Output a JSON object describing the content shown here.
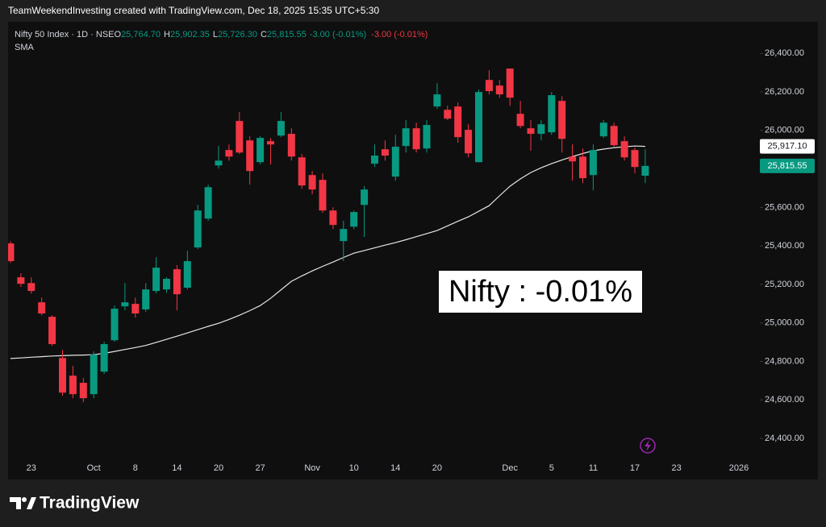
{
  "chart_data": {
    "type": "candlestick",
    "source": "TeamWeekendInvesting created with TradingView.com, Dec 18, 2025 15:35 UTC+5:30",
    "title": "Nifty 50 Index · 1D · NSE",
    "legend": [
      {
        "label": "O",
        "value": "25,764.70"
      },
      {
        "label": "H",
        "value": "25,902.35"
      },
      {
        "label": "L",
        "value": "25,726.30"
      },
      {
        "label": "C",
        "value": "25,815.55"
      }
    ],
    "changes": [
      "-3.00 (-0.01%)",
      "-3.00 (-0.01%)"
    ],
    "annotation": "Nifty : -0.01%",
    "brand": "TradingView",
    "up_color": "#089981",
    "down_color": "#f23645",
    "categories": [
      null,
      null,
      "23",
      null,
      null,
      null,
      null,
      null,
      "Oct",
      null,
      null,
      null,
      "8",
      null,
      null,
      null,
      "14",
      null,
      null,
      null,
      "20",
      null,
      null,
      null,
      "27",
      null,
      null,
      null,
      null,
      "Nov",
      null,
      null,
      null,
      "10",
      null,
      null,
      null,
      "14",
      null,
      null,
      null,
      "20",
      null,
      null,
      null,
      null,
      null,
      null,
      "Dec",
      null,
      null,
      null,
      "5",
      null,
      null,
      null,
      "11",
      null,
      null,
      null,
      "17",
      null,
      null,
      null,
      "23",
      null,
      null,
      null,
      null,
      null,
      "2026",
      null
    ],
    "open": [
      25413,
      25237,
      25207,
      25107,
      25032,
      24818,
      24726,
      24689,
      24630,
      24747,
      24910,
      25086,
      25099,
      25070,
      25166,
      25174,
      25279,
      25183,
      25392,
      25542,
      25818,
      25898,
      26049,
      25948,
      25835,
      25944,
      25973,
      25982,
      25860,
      25768,
      25743,
      25584,
      25425,
      25500,
      25613,
      25827,
      25902,
      25760,
      25919,
      26011,
      25906,
      26124,
      26107,
      26124,
      26003,
      25835,
      26262,
      26233,
      26321,
      26086,
      26011,
      25982,
      25990,
      26153,
      25864,
      25864,
      25768,
      25969,
      26023,
      25944,
      25898,
      25764.7,
      null,
      null,
      null,
      null,
      null,
      null,
      null,
      null,
      null,
      null
    ],
    "high": [
      25425,
      25258,
      25237,
      25132,
      25040,
      24860,
      24777,
      24714,
      24852,
      24902,
      25090,
      25207,
      25132,
      25207,
      25341,
      25237,
      25300,
      25375,
      25613,
      25718,
      25919,
      25927,
      26095,
      25969,
      25969,
      25960,
      26095,
      26011,
      25877,
      25789,
      25777,
      25601,
      25530,
      25584,
      25710,
      25927,
      25948,
      25977,
      26053,
      26040,
      26053,
      26245,
      26128,
      26145,
      26032,
      26212,
      26312,
      26262,
      26321,
      26153,
      26053,
      26053,
      26199,
      26178,
      25927,
      25906,
      25927,
      26053,
      26040,
      25969,
      25910,
      25902.35,
      null,
      null,
      null,
      null,
      null,
      null,
      null,
      null,
      null,
      null
    ],
    "low": [
      25312,
      25187,
      25153,
      25040,
      24881,
      24622,
      24609,
      24588,
      24609,
      24735,
      24902,
      25065,
      25028,
      25057,
      25153,
      25157,
      25065,
      25174,
      25383,
      25530,
      25802,
      25843,
      25877,
      25718,
      25823,
      25823,
      25965,
      25843,
      25697,
      25668,
      25572,
      25488,
      25321,
      25488,
      25446,
      25810,
      25843,
      25739,
      25885,
      25885,
      25885,
      26111,
      26053,
      25936,
      25860,
      25835,
      26187,
      26170,
      26128,
      26011,
      25894,
      25948,
      25977,
      25885,
      25739,
      25726,
      25689,
      25960,
      25915,
      25843,
      25777,
      25726.3,
      null,
      null,
      null,
      null,
      null,
      null,
      null,
      null,
      null,
      null
    ],
    "close": [
      25321,
      25203,
      25166,
      25049,
      24890,
      24638,
      24630,
      24609,
      24835,
      24890,
      25074,
      25107,
      25049,
      25174,
      25287,
      25229,
      25149,
      25321,
      25584,
      25705,
      25843,
      25864,
      25885,
      25789,
      25961,
      25927,
      26049,
      25864,
      25714,
      25693,
      25584,
      25509,
      25488,
      25576,
      25693,
      25869,
      25869,
      25915,
      26011,
      25902,
      26028,
      26187,
      26061,
      25965,
      25881,
      26199,
      26204,
      26187,
      26170,
      26023,
      25982,
      26032,
      26183,
      25956,
      25839,
      25752,
      25898,
      26040,
      25923,
      25860,
      25810,
      25815.55,
      null,
      null,
      null,
      null,
      null,
      null,
      null,
      null,
      null,
      null
    ],
    "sma": {
      "name": "SMA",
      "color": "#e6e6e6",
      "values": [
        24815,
        24818,
        24822,
        24825,
        24828,
        24830,
        24832,
        24833,
        24835,
        24842,
        24852,
        24862,
        24872,
        24883,
        24899,
        24915,
        24931,
        24948,
        24965,
        24982,
        24998,
        25018,
        25040,
        25064,
        25090,
        25128,
        25172,
        25216,
        25244,
        25270,
        25294,
        25316,
        25340,
        25362,
        25376,
        25390,
        25404,
        25417,
        25432,
        25448,
        25464,
        25480,
        25504,
        25528,
        25551,
        25580,
        25609,
        25660,
        25710,
        25748,
        25781,
        25806,
        25827,
        25846,
        25864,
        25880,
        25894,
        25903,
        25910,
        25915,
        25919,
        25917.1,
        null,
        null,
        null,
        null,
        null,
        null,
        null,
        null,
        null,
        null
      ]
    },
    "price_labels": [
      {
        "value": 25917.1,
        "label": "25,917.10",
        "background": "#ffffff",
        "color": "#131722"
      },
      {
        "value": 25815.55,
        "label": "25,815.55",
        "background": "#089981",
        "color": "#ffffff"
      }
    ],
    "ylim": [
      24300,
      26560
    ],
    "yticks": [
      {
        "value": 24400,
        "label": "24,400.00"
      },
      {
        "value": 24600,
        "label": "24,600.00"
      },
      {
        "value": 24800,
        "label": "24,800.00"
      },
      {
        "value": 25000,
        "label": "25,000.00"
      },
      {
        "value": 25200,
        "label": "25,200.00"
      },
      {
        "value": 25400,
        "label": "25,400.00"
      },
      {
        "value": 25600,
        "label": "25,600.00"
      },
      {
        "value": 25800,
        "label": "25,800.00"
      },
      {
        "value": 26000,
        "label": "26,000.00"
      },
      {
        "value": 26200,
        "label": "26,200.00"
      },
      {
        "value": 26400,
        "label": "26,400.00"
      }
    ],
    "grid": false
  }
}
